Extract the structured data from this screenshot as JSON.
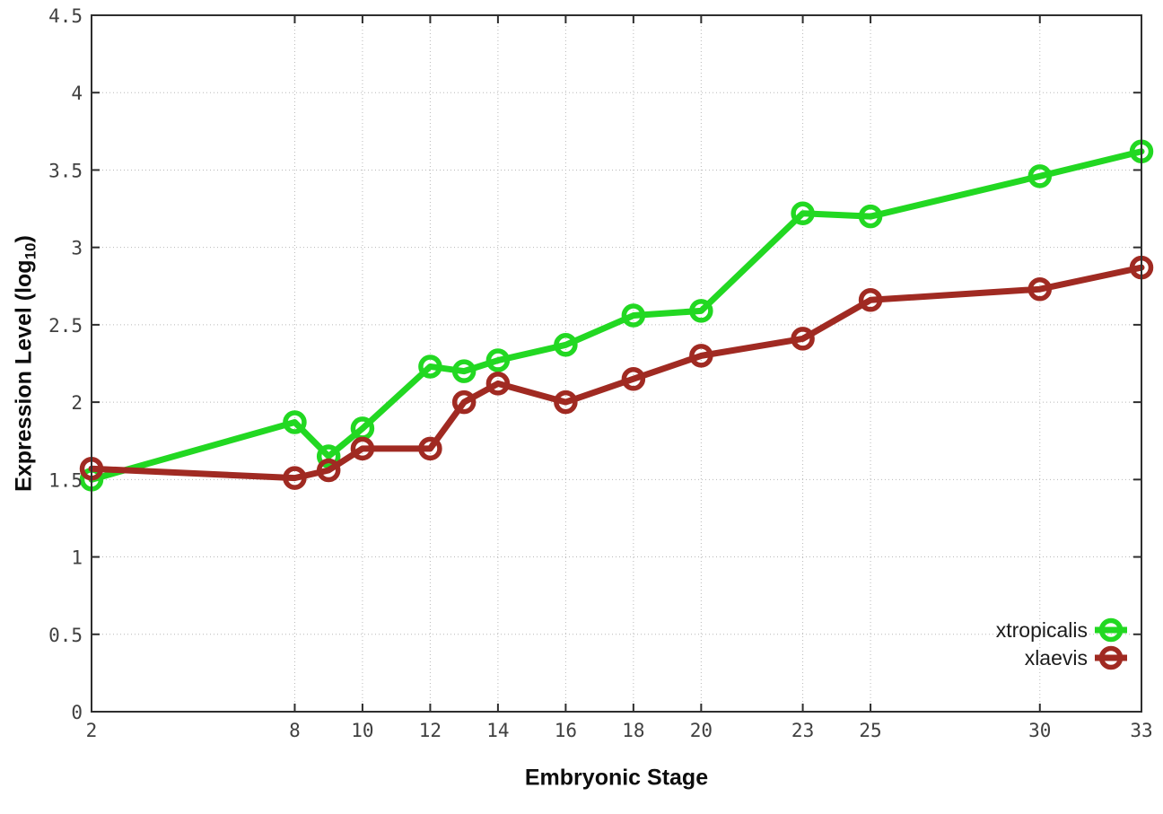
{
  "chart_data": {
    "type": "line",
    "title": "",
    "xlabel": "Embryonic Stage",
    "ylabel": {
      "prefix": "Expression Level (log",
      "subscript": "10",
      "suffix": ")"
    },
    "x": [
      2,
      8,
      9,
      10,
      12,
      13,
      14,
      16,
      18,
      20,
      23,
      25,
      30,
      33
    ],
    "series": [
      {
        "name": "xtropicalis",
        "color": "#22d822",
        "values": [
          1.5,
          1.87,
          1.65,
          1.83,
          2.23,
          2.2,
          2.27,
          2.37,
          2.56,
          2.59,
          3.22,
          3.2,
          3.46,
          3.62
        ]
      },
      {
        "name": "xlaevis",
        "color": "#a02a22",
        "values": [
          1.57,
          1.51,
          1.56,
          1.7,
          1.7,
          2.0,
          2.12,
          2.0,
          2.15,
          2.3,
          2.41,
          2.66,
          2.73,
          2.87
        ]
      }
    ],
    "xlim": [
      2,
      33
    ],
    "ylim": [
      0,
      4.5
    ],
    "xticks": [
      2,
      8,
      10,
      12,
      14,
      16,
      18,
      20,
      23,
      25,
      30,
      33
    ],
    "xticklabels": [
      "2",
      "8",
      "10",
      "12",
      "14",
      "16",
      "18",
      "20",
      "23",
      "25",
      "30",
      "33"
    ],
    "yticks": [
      0,
      0.5,
      1,
      1.5,
      2,
      2.5,
      3,
      3.5,
      4,
      4.5
    ],
    "yticklabels": [
      "0",
      "0.5",
      "1",
      "1.5",
      "2",
      "2.5",
      "3",
      "3.5",
      "4",
      "4.5"
    ],
    "grid": true,
    "legend_position": "bottom-right",
    "colors": {
      "grid": "#b8b8b8",
      "border": "#2e2e2e",
      "tick_label": "#404040",
      "background": "#ffffff"
    }
  }
}
